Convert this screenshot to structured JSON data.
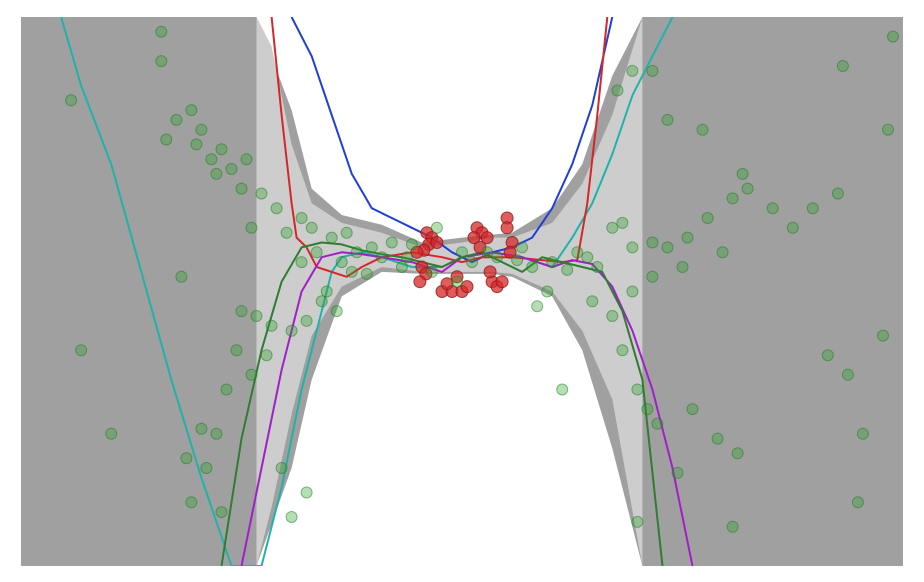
{
  "chart_data": {
    "type": "scatter",
    "title": "",
    "xlabel": "",
    "ylabel": "",
    "xlim": [
      -4.4,
      4.4
    ],
    "ylim": [
      -3.1,
      2.5
    ],
    "grid": false,
    "legend": "none",
    "colors": {
      "outer_band": "#a0a0a0",
      "inner_band": "#cdcdcd",
      "train_points": "#d62728",
      "sample_points": "#2ca02c",
      "mean_line": "#2e7d32"
    },
    "bands": [
      {
        "name": "",
        "role": "outer",
        "x": [
          -4.4,
          -2.3,
          -2.05,
          -1.7,
          -1.5,
          -1.2,
          -0.8,
          -0.4,
          0.0,
          0.3,
          0.5,
          0.9,
          1.2,
          1.5,
          1.8,
          2.0,
          2.2,
          4.4
        ],
        "lower": [
          -3.1,
          -3.1,
          -3.1,
          -2.1,
          -1.2,
          -0.35,
          -0.1,
          -0.12,
          -0.12,
          -0.12,
          -0.15,
          -0.35,
          -0.9,
          -1.9,
          -3.1,
          -3.1,
          -3.1,
          -3.1
        ],
        "upper": [
          2.5,
          2.5,
          2.5,
          1.55,
          0.75,
          0.48,
          0.38,
          0.2,
          0.25,
          0.28,
          0.3,
          0.55,
          1.0,
          1.9,
          2.5,
          2.5,
          2.5,
          2.5
        ]
      },
      {
        "name": "",
        "role": "inner",
        "x": [
          -2.05,
          -1.9,
          -1.7,
          -1.5,
          -1.2,
          -0.8,
          -0.4,
          0.0,
          0.3,
          0.5,
          0.9,
          1.2,
          1.5,
          1.8
        ],
        "lower": [
          -3.1,
          -2.5,
          -1.55,
          -0.75,
          -0.25,
          -0.05,
          -0.1,
          -0.1,
          -0.1,
          -0.12,
          -0.3,
          -0.7,
          -1.4,
          -3.1
        ],
        "upper": [
          2.5,
          2.2,
          1.2,
          0.6,
          0.4,
          0.3,
          0.15,
          0.2,
          0.25,
          0.25,
          0.4,
          0.8,
          1.5,
          2.5
        ]
      }
    ],
    "series": [
      {
        "name": "",
        "kind": "line",
        "color": "#20b2aa",
        "x": [
          -4.0,
          -3.8,
          -3.5,
          -3.2,
          -2.9,
          -2.6,
          -2.3,
          -2.0,
          -1.8,
          -1.6,
          -1.4,
          -1.3,
          -1.2,
          -1.0,
          -0.8,
          -0.5,
          -0.2,
          0.0,
          0.3,
          0.6,
          0.9,
          1.1,
          1.3,
          1.5,
          1.7,
          1.9,
          2.1
        ],
        "y": [
          2.5,
          1.8,
          1.0,
          -0.1,
          -1.2,
          -2.2,
          -3.1,
          -3.1,
          -2.3,
          -1.3,
          -0.5,
          -0.1,
          0.05,
          0.1,
          0.05,
          -0.05,
          -0.05,
          0.05,
          0.1,
          0.05,
          -0.05,
          0.25,
          0.6,
          1.1,
          1.7,
          2.1,
          2.5
        ]
      },
      {
        "name": "",
        "kind": "line",
        "color": "#1f3fd6",
        "x": [
          -1.7,
          -1.5,
          -1.3,
          -1.1,
          -0.9,
          -0.7,
          -0.5,
          -0.3,
          -0.1,
          0.1,
          0.3,
          0.5,
          0.7,
          0.9,
          1.1,
          1.3,
          1.5
        ],
        "y": [
          2.5,
          2.1,
          1.5,
          0.9,
          0.55,
          0.45,
          0.35,
          0.25,
          0.1,
          0.0,
          0.1,
          0.15,
          0.25,
          0.55,
          1.0,
          1.6,
          2.5
        ]
      },
      {
        "name": "",
        "kind": "line",
        "color": "#d62728",
        "x": [
          -1.9,
          -1.8,
          -1.7,
          -1.65,
          -1.55,
          -1.45,
          -1.3,
          -1.15,
          -1.0,
          -0.8,
          -0.5,
          -0.2,
          0.0,
          0.2,
          0.5,
          0.8,
          1.0,
          1.15,
          1.25,
          1.35,
          1.45
        ],
        "y": [
          2.5,
          1.5,
          0.6,
          0.25,
          0.15,
          -0.05,
          -0.1,
          -0.15,
          -0.05,
          0.05,
          0.1,
          0.05,
          0.0,
          0.05,
          0.05,
          0.02,
          0.0,
          0.02,
          0.6,
          1.5,
          2.5
        ]
      },
      {
        "name": "",
        "kind": "line",
        "color": "#a020c8",
        "x": [
          -2.2,
          -2.0,
          -1.8,
          -1.6,
          -1.4,
          -1.2,
          -1.0,
          -0.8,
          -0.5,
          -0.2,
          0.0,
          0.3,
          0.6,
          0.9,
          1.1,
          1.3,
          1.5,
          1.7,
          1.9,
          2.1,
          2.3
        ],
        "y": [
          -3.1,
          -2.1,
          -1.1,
          -0.3,
          0.05,
          0.1,
          0.08,
          0.05,
          0.0,
          -0.1,
          0.05,
          0.1,
          0.05,
          -0.05,
          0.02,
          -0.02,
          -0.25,
          -0.7,
          -1.3,
          -2.1,
          -3.1
        ]
      },
      {
        "name": "",
        "kind": "line",
        "color": "#2e7d32",
        "x": [
          -2.4,
          -2.2,
          -2.0,
          -1.8,
          -1.6,
          -1.4,
          -1.2,
          -1.0,
          -0.8,
          -0.6,
          -0.4,
          -0.2,
          0.0,
          0.2,
          0.4,
          0.6,
          0.8,
          1.0,
          1.2,
          1.4,
          1.6,
          1.8,
          2.0
        ],
        "y": [
          -3.1,
          -1.8,
          -0.9,
          -0.2,
          0.15,
          0.2,
          0.18,
          0.12,
          0.08,
          0.05,
          0.0,
          -0.05,
          0.05,
          0.1,
          0.0,
          -0.1,
          0.05,
          0.0,
          -0.05,
          -0.1,
          -0.5,
          -1.2,
          -3.1
        ]
      },
      {
        "name": "",
        "kind": "scatter",
        "color": "#d62728",
        "points": [
          [
            -0.35,
            0.3
          ],
          [
            -0.3,
            0.25
          ],
          [
            -0.33,
            0.18
          ],
          [
            -0.38,
            0.12
          ],
          [
            -0.25,
            0.2
          ],
          [
            -0.4,
            -0.05
          ],
          [
            -0.36,
            -0.12
          ],
          [
            -0.42,
            -0.2
          ],
          [
            -0.2,
            -0.3
          ],
          [
            -0.1,
            -0.3
          ],
          [
            0.0,
            -0.3
          ],
          [
            0.05,
            -0.25
          ],
          [
            -0.15,
            -0.22
          ],
          [
            0.15,
            0.35
          ],
          [
            0.2,
            0.3
          ],
          [
            0.12,
            0.25
          ],
          [
            0.25,
            0.25
          ],
          [
            0.18,
            0.15
          ],
          [
            0.3,
            -0.2
          ],
          [
            0.35,
            -0.25
          ],
          [
            0.28,
            -0.1
          ],
          [
            0.4,
            -0.2
          ],
          [
            0.45,
            0.45
          ],
          [
            0.45,
            0.35
          ],
          [
            0.5,
            0.2
          ],
          [
            0.48,
            0.1
          ],
          [
            -0.45,
            0.1
          ],
          [
            -0.05,
            -0.15
          ]
        ]
      },
      {
        "name": "",
        "kind": "scatter",
        "color": "#2ca02c",
        "points": [
          [
            -3.0,
            2.35
          ],
          [
            -3.9,
            1.65
          ],
          [
            -2.7,
            1.55
          ],
          [
            -2.6,
            1.35
          ],
          [
            -2.85,
            1.45
          ],
          [
            -2.65,
            1.2
          ],
          [
            -2.5,
            1.05
          ],
          [
            -2.4,
            1.15
          ],
          [
            -2.3,
            0.95
          ],
          [
            -2.15,
            1.05
          ],
          [
            -2.2,
            0.75
          ],
          [
            -2.45,
            0.9
          ],
          [
            -2.0,
            0.7
          ],
          [
            -1.85,
            0.55
          ],
          [
            -1.6,
            0.45
          ],
          [
            -1.75,
            0.3
          ],
          [
            -1.5,
            0.35
          ],
          [
            -1.3,
            0.25
          ],
          [
            -1.45,
            0.1
          ],
          [
            -1.2,
            0.0
          ],
          [
            -1.05,
            0.1
          ],
          [
            -2.1,
            0.35
          ],
          [
            -2.8,
            -0.15
          ],
          [
            -1.35,
            -0.3
          ],
          [
            -1.25,
            -0.5
          ],
          [
            -1.55,
            -0.6
          ],
          [
            -1.7,
            -0.7
          ],
          [
            -1.9,
            -0.65
          ],
          [
            -2.05,
            -0.55
          ],
          [
            -2.2,
            -0.5
          ],
          [
            -1.95,
            -0.95
          ],
          [
            -2.1,
            -1.15
          ],
          [
            -2.25,
            -0.9
          ],
          [
            -2.35,
            -1.3
          ],
          [
            -2.45,
            -1.75
          ],
          [
            -2.75,
            -2.0
          ],
          [
            -2.6,
            -1.7
          ],
          [
            -2.55,
            -2.1
          ],
          [
            -3.5,
            -1.75
          ],
          [
            -3.8,
            -0.9
          ],
          [
            -2.4,
            -2.55
          ],
          [
            -2.7,
            -2.45
          ],
          [
            -1.7,
            -2.6
          ],
          [
            -1.55,
            -2.35
          ],
          [
            -1.8,
            -2.1
          ],
          [
            -3.0,
            2.05
          ],
          [
            -2.95,
            1.25
          ],
          [
            -0.9,
            0.15
          ],
          [
            -0.7,
            0.2
          ],
          [
            -0.5,
            0.18
          ],
          [
            -0.8,
            0.05
          ],
          [
            -0.6,
            -0.05
          ],
          [
            -0.95,
            -0.12
          ],
          [
            -0.55,
            0.05
          ],
          [
            -0.3,
            -0.1
          ],
          [
            0.0,
            0.1
          ],
          [
            0.1,
            0.0
          ],
          [
            0.35,
            0.05
          ],
          [
            0.55,
            0.02
          ],
          [
            0.7,
            -0.05
          ],
          [
            0.9,
            0.0
          ],
          [
            1.05,
            -0.08
          ],
          [
            1.25,
            0.05
          ],
          [
            1.15,
            0.1
          ],
          [
            1.35,
            -0.05
          ],
          [
            1.5,
            0.35
          ],
          [
            1.6,
            0.4
          ],
          [
            1.7,
            0.15
          ],
          [
            1.9,
            0.2
          ],
          [
            2.05,
            0.15
          ],
          [
            2.25,
            0.25
          ],
          [
            2.45,
            0.45
          ],
          [
            2.7,
            0.65
          ],
          [
            2.85,
            0.75
          ],
          [
            3.1,
            0.55
          ],
          [
            3.3,
            0.35
          ],
          [
            2.6,
            0.1
          ],
          [
            2.2,
            -0.05
          ],
          [
            1.9,
            -0.15
          ],
          [
            1.7,
            -0.3
          ],
          [
            1.5,
            -0.55
          ],
          [
            1.3,
            -0.4
          ],
          [
            1.6,
            -0.9
          ],
          [
            1.75,
            -1.3
          ],
          [
            1.85,
            -1.5
          ],
          [
            1.95,
            -1.65
          ],
          [
            2.3,
            -1.5
          ],
          [
            2.55,
            -1.8
          ],
          [
            2.75,
            -1.95
          ],
          [
            3.65,
            -0.95
          ],
          [
            3.85,
            -1.15
          ],
          [
            4.0,
            -1.75
          ],
          [
            4.2,
            -0.75
          ],
          [
            3.5,
            0.55
          ],
          [
            3.75,
            0.7
          ],
          [
            2.4,
            1.35
          ],
          [
            2.8,
            0.9
          ],
          [
            1.55,
            1.75
          ],
          [
            1.7,
            1.95
          ],
          [
            1.9,
            1.95
          ],
          [
            2.05,
            1.45
          ],
          [
            4.3,
            2.3
          ],
          [
            4.25,
            1.35
          ],
          [
            3.8,
            2.0
          ],
          [
            2.7,
            -2.7
          ],
          [
            1.75,
            -2.65
          ],
          [
            2.15,
            -2.15
          ],
          [
            3.95,
            -2.45
          ],
          [
            1.0,
            -1.3
          ],
          [
            0.75,
            -0.45
          ],
          [
            0.85,
            -0.3
          ],
          [
            -0.25,
            0.35
          ],
          [
            -0.05,
            -0.2
          ],
          [
            0.25,
            0.1
          ],
          [
            0.6,
            0.15
          ],
          [
            -1.15,
            0.3
          ],
          [
            -1.4,
            -0.4
          ],
          [
            -1.6,
            0.0
          ],
          [
            -1.1,
            -0.1
          ]
        ]
      }
    ]
  }
}
